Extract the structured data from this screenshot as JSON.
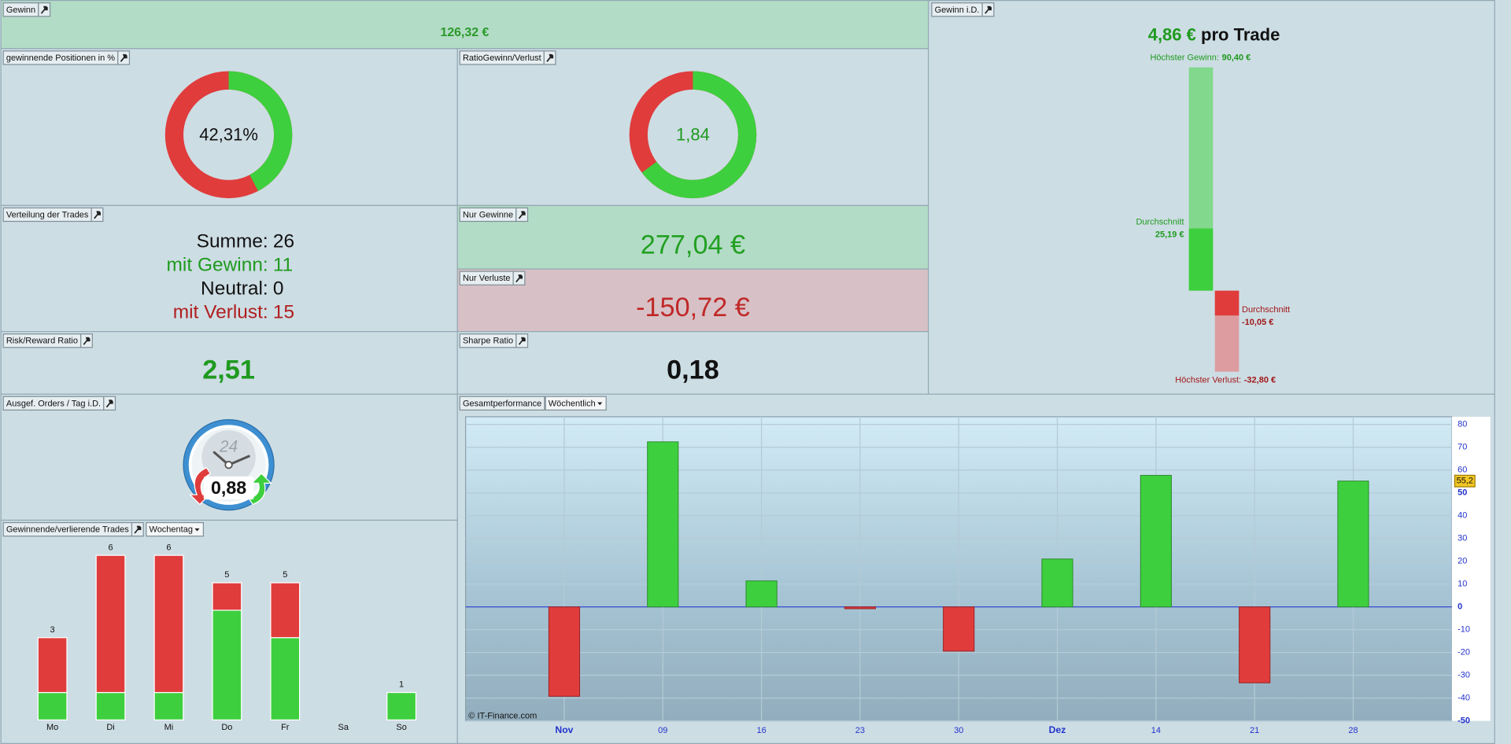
{
  "gewinn": {
    "title": "Gewinn",
    "value": "126,32 €"
  },
  "win_positions": {
    "title": "gewinnende Positionen in %",
    "type": "donut",
    "value": 42.31,
    "value_label": "42,31%",
    "colors": [
      "#3ecf3e",
      "#e03c3c"
    ]
  },
  "ratio": {
    "title": "RatioGewinn/Verlust",
    "type": "donut-ratio",
    "value": 1.84,
    "value_label": "1,84",
    "colors": [
      "#3ecf3e",
      "#e03c3c"
    ]
  },
  "distribution": {
    "title": "Verteilung der Trades",
    "rows": [
      {
        "label": "Summe:",
        "value": 26,
        "color": "#111111"
      },
      {
        "label": "mit Gewinn:",
        "value": 11,
        "color": "#1f9a1f"
      },
      {
        "label": "Neutral:",
        "value": 0,
        "color": "#111111"
      },
      {
        "label": "mit Verlust:",
        "value": 15,
        "color": "#b01e1e"
      }
    ]
  },
  "only_gains": {
    "title": "Nur Gewinne",
    "value": "277,04 €"
  },
  "only_losses": {
    "title": "Nur Verluste",
    "value": "-150,72 €"
  },
  "risk_reward": {
    "title": "Risk/Reward Ratio",
    "value": "2,51"
  },
  "sharpe": {
    "title": "Sharpe Ratio",
    "value": "0,18"
  },
  "orders": {
    "title": "Ausgef. Orders / Tag i.D.",
    "clock_label": "24",
    "value": "0,88"
  },
  "per_trade": {
    "title": "Gewinn i.D.",
    "value": "4,86 €",
    "unit": "pro Trade",
    "max_gain": {
      "label": "Höchster Gewinn:",
      "value": 90.4,
      "value_label": "90,40 €"
    },
    "avg_gain": {
      "label": "Durchschnitt",
      "value": 25.19,
      "value_label": "25,19 €"
    },
    "avg_loss": {
      "label": "Durchschnitt",
      "value": -10.05,
      "value_label": "-10,05 €"
    },
    "max_loss": {
      "label": "Höchster Verlust:",
      "value": -32.8,
      "value_label": "-32,80 €"
    }
  },
  "weekday": {
    "title": "Gewinnende/verlierende Trades",
    "dropdown": "Wochentag",
    "type": "stacked-bar",
    "categories": [
      "Mo",
      "Di",
      "Mi",
      "Do",
      "Fr",
      "Sa",
      "So"
    ],
    "series": [
      {
        "color": "#3ecf3e",
        "values": [
          1,
          1,
          1,
          4,
          3,
          0,
          1
        ]
      },
      {
        "color": "#e03c3c",
        "values": [
          2,
          5,
          5,
          1,
          2,
          0,
          0
        ]
      }
    ],
    "total_labels": [
      3,
      6,
      6,
      5,
      5,
      null,
      1
    ]
  },
  "performance": {
    "title": "Gesamtperformance",
    "dropdown": "Wöchentlich",
    "type": "bar",
    "categories": [
      "Nov",
      "09",
      "16",
      "23",
      "30",
      "Dez",
      "14",
      "21",
      "28"
    ],
    "values": [
      -39.2,
      72.4,
      11.4,
      -0.8,
      -19.4,
      21.0,
      57.7,
      -33.3,
      55.2
    ],
    "value_labels": [
      null,
      null,
      null,
      null,
      null,
      null,
      null,
      null,
      "55,2"
    ],
    "colors": [
      "#3ecf3e",
      "#e03c3c"
    ],
    "ylim": [
      -50,
      83.4
    ],
    "yticks": [
      80,
      70,
      60,
      50,
      40,
      30,
      20,
      10,
      0,
      -10,
      -20,
      -30,
      -40,
      -50
    ],
    "grid": true,
    "credit": "© IT-Finance.com"
  }
}
